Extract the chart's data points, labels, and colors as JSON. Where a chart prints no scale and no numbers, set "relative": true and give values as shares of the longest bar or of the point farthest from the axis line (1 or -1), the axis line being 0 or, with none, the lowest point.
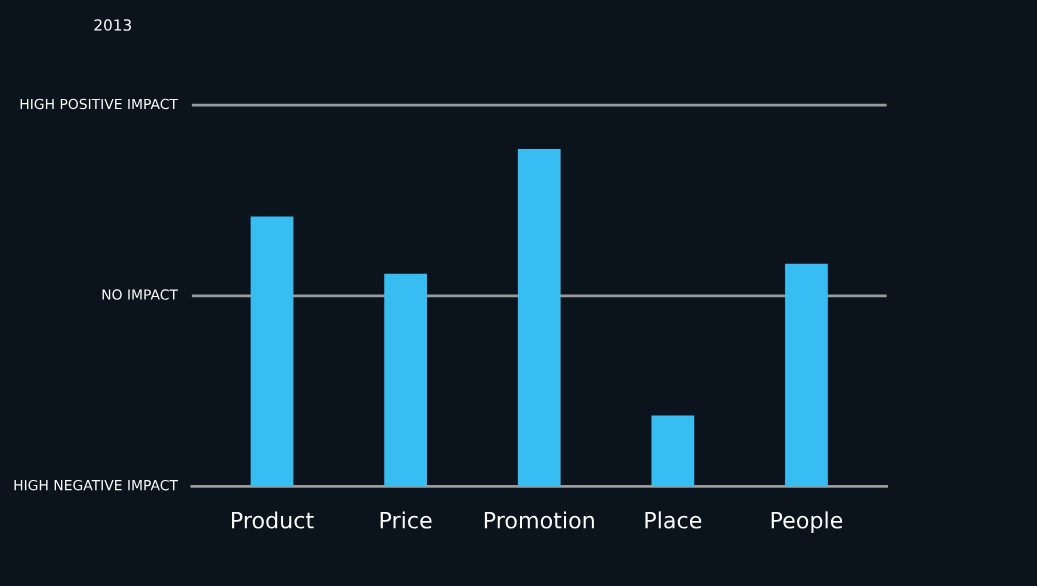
{
  "chart_data": {
    "type": "bar",
    "subtitle": "2013",
    "relative": true,
    "categories": [
      "Product",
      "Price",
      "Promotion",
      "Place",
      "People"
    ],
    "values": [
      0.8,
      0.63,
      1,
      0.21,
      0.66
    ],
    "color": "#38bdf2",
    "annotations": [
      "HIGH NEGATIVE IMPACT"
    ],
    "ref_lines": [
      {
        "axis": "y",
        "value": 0.565,
        "label": "NO IMPACT",
        "color": "#9a9a9a"
      },
      {
        "axis": "y",
        "value": 1.13,
        "label": "HIGH POSITIVE IMPACT",
        "color": "#9a9a9a"
      }
    ]
  }
}
